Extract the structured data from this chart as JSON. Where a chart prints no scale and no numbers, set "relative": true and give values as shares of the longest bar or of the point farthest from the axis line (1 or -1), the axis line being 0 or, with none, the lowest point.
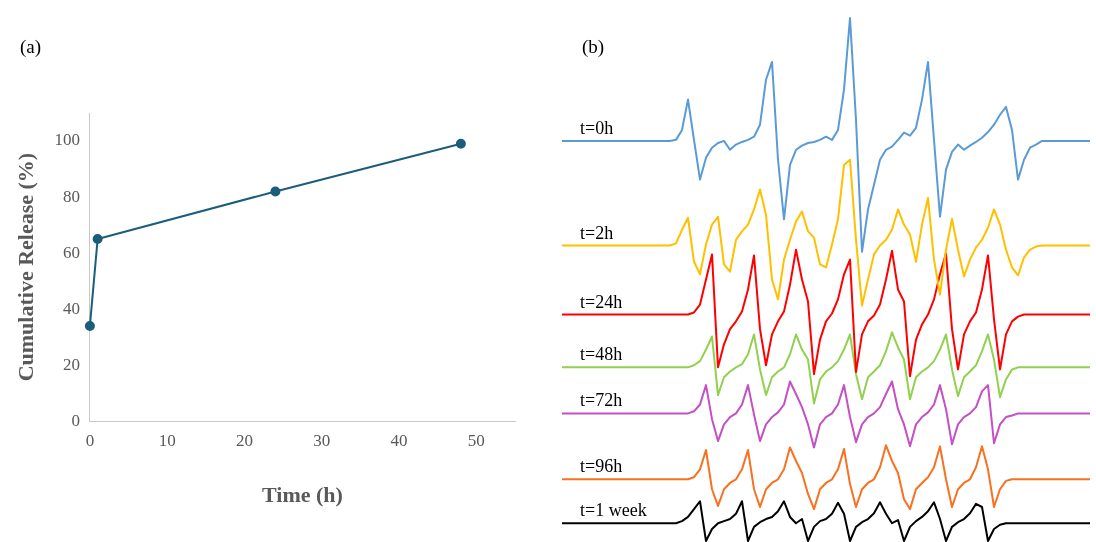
{
  "chart_data": [
    {
      "type": "line",
      "title": "(a)",
      "xlabel": "Time (h)",
      "ylabel": "Cumulative Release (%)",
      "x": [
        0,
        1,
        24,
        48
      ],
      "values": [
        34,
        65,
        82,
        99
      ],
      "color": "#1b5e7b",
      "xlim": [
        0,
        55
      ],
      "xticks": [
        0,
        10,
        20,
        30,
        40,
        50
      ],
      "ylim": [
        0,
        110
      ],
      "yticks": [
        0,
        20,
        40,
        60,
        80,
        100
      ],
      "marker": "circle",
      "grid": false
    },
    {
      "type": "line",
      "title": "(b)",
      "relative": true,
      "categories": [
        null,
        null,
        null,
        null,
        null,
        null,
        null,
        null,
        null,
        null,
        null,
        null,
        null,
        null,
        null,
        null,
        null,
        null,
        null,
        null,
        null,
        null,
        null,
        null,
        null,
        null,
        null,
        null,
        null,
        null,
        null,
        null,
        null,
        null,
        null,
        null,
        null,
        null,
        null,
        null,
        null,
        null,
        null,
        null,
        null,
        null,
        null,
        null,
        null,
        null,
        null,
        null,
        null,
        null,
        null,
        null,
        null,
        null,
        null,
        null,
        null,
        null,
        null,
        null,
        null,
        null,
        null,
        null,
        null,
        null,
        null,
        null,
        null,
        null,
        null,
        null,
        null,
        null,
        null,
        null,
        null,
        null,
        null,
        null,
        null,
        null,
        null,
        null,
        null
      ],
      "series": [
        {
          "name": "t=0h",
          "color": "#5b9bd5",
          "values": [
            0.765,
            0.765,
            0.765,
            0.765,
            0.765,
            0.765,
            0.765,
            0.765,
            0.765,
            0.765,
            0.765,
            0.765,
            0.765,
            0.765,
            0.765,
            0.765,
            0.765,
            0.765,
            0.765,
            0.767,
            0.786,
            0.844,
            0.767,
            0.691,
            0.733,
            0.752,
            0.761,
            0.765,
            0.748,
            0.758,
            0.763,
            0.767,
            0.773,
            0.796,
            0.882,
            0.916,
            0.729,
            0.615,
            0.719,
            0.748,
            0.756,
            0.761,
            0.763,
            0.767,
            0.773,
            0.767,
            0.786,
            0.863,
            1,
            0.805,
            0.553,
            0.634,
            0.681,
            0.729,
            0.748,
            0.754,
            0.767,
            0.781,
            0.775,
            0.79,
            0.844,
            0.916,
            0.767,
            0.62,
            0.71,
            0.744,
            0.758,
            0.748,
            0.756,
            0.763,
            0.771,
            0.782,
            0.796,
            0.815,
            0.83,
            0.786,
            0.691,
            0.729,
            0.752,
            0.758,
            0.765,
            0.765,
            0.765,
            0.765,
            0.765,
            0.765,
            0.765,
            0.765,
            0.765
          ]
        },
        {
          "name": "t=2h",
          "color": "#ffc000",
          "values": [
            0.565,
            0.565,
            0.565,
            0.565,
            0.565,
            0.565,
            0.565,
            0.565,
            0.565,
            0.565,
            0.565,
            0.565,
            0.565,
            0.565,
            0.565,
            0.565,
            0.565,
            0.565,
            0.565,
            0.569,
            0.595,
            0.618,
            0.534,
            0.51,
            0.567,
            0.605,
            0.62,
            0.529,
            0.515,
            0.576,
            0.592,
            0.605,
            0.634,
            0.672,
            0.624,
            0.5,
            0.462,
            0.538,
            0.576,
            0.611,
            0.63,
            0.592,
            0.58,
            0.529,
            0.523,
            0.567,
            0.615,
            0.719,
            0.729,
            0.576,
            0.45,
            0.5,
            0.548,
            0.565,
            0.576,
            0.595,
            0.634,
            0.605,
            0.586,
            0.534,
            0.605,
            0.656,
            0.538,
            0.471,
            0.557,
            0.616,
            0.557,
            0.506,
            0.538,
            0.561,
            0.576,
            0.599,
            0.634,
            0.605,
            0.557,
            0.523,
            0.508,
            0.542,
            0.557,
            0.563,
            0.565,
            0.565,
            0.565,
            0.565,
            0.565,
            0.565,
            0.565,
            0.565,
            0.565
          ]
        },
        {
          "name": "t=24h",
          "color": "#ff0000",
          "values": [
            0.433,
            0.433,
            0.433,
            0.433,
            0.433,
            0.433,
            0.433,
            0.433,
            0.433,
            0.433,
            0.433,
            0.433,
            0.433,
            0.433,
            0.433,
            0.433,
            0.433,
            0.433,
            0.433,
            0.433,
            0.433,
            0.433,
            0.437,
            0.452,
            0.5,
            0.548,
            0.332,
            0.376,
            0.405,
            0.42,
            0.439,
            0.481,
            0.546,
            0.405,
            0.336,
            0.395,
            0.42,
            0.439,
            0.49,
            0.557,
            0.5,
            0.458,
            0.319,
            0.385,
            0.42,
            0.435,
            0.462,
            0.51,
            0.538,
            0.323,
            0.395,
            0.42,
            0.431,
            0.452,
            0.5,
            0.555,
            0.481,
            0.458,
            0.315,
            0.385,
            0.414,
            0.433,
            0.462,
            0.51,
            0.55,
            0.405,
            0.328,
            0.395,
            0.42,
            0.437,
            0.481,
            0.546,
            0.424,
            0.328,
            0.395,
            0.42,
            0.429,
            0.433,
            0.433,
            0.433,
            0.433,
            0.433,
            0.433,
            0.433,
            0.433,
            0.433,
            0.433,
            0.433,
            0.433
          ]
        },
        {
          "name": "t=48h",
          "color": "#92d050",
          "values": [
            0.332,
            0.332,
            0.332,
            0.332,
            0.332,
            0.332,
            0.332,
            0.332,
            0.332,
            0.332,
            0.332,
            0.332,
            0.332,
            0.332,
            0.332,
            0.332,
            0.332,
            0.332,
            0.332,
            0.332,
            0.332,
            0.332,
            0.336,
            0.344,
            0.366,
            0.391,
            0.279,
            0.313,
            0.324,
            0.332,
            0.338,
            0.357,
            0.395,
            0.328,
            0.279,
            0.313,
            0.324,
            0.332,
            0.357,
            0.395,
            0.366,
            0.347,
            0.263,
            0.309,
            0.324,
            0.332,
            0.344,
            0.366,
            0.395,
            0.319,
            0.271,
            0.313,
            0.324,
            0.336,
            0.363,
            0.399,
            0.37,
            0.347,
            0.271,
            0.313,
            0.324,
            0.332,
            0.344,
            0.366,
            0.395,
            0.328,
            0.277,
            0.313,
            0.324,
            0.336,
            0.363,
            0.395,
            0.347,
            0.275,
            0.309,
            0.328,
            0.332,
            0.332,
            0.332,
            0.332,
            0.332,
            0.332,
            0.332,
            0.332,
            0.332,
            0.332,
            0.332,
            0.332,
            0.332
          ]
        },
        {
          "name": "t=72h",
          "color": "#c54fc5",
          "values": [
            0.244,
            0.244,
            0.244,
            0.244,
            0.244,
            0.244,
            0.244,
            0.244,
            0.244,
            0.244,
            0.244,
            0.244,
            0.244,
            0.244,
            0.244,
            0.244,
            0.244,
            0.244,
            0.244,
            0.244,
            0.244,
            0.244,
            0.248,
            0.261,
            0.298,
            0.233,
            0.191,
            0.223,
            0.237,
            0.244,
            0.261,
            0.298,
            0.242,
            0.191,
            0.223,
            0.237,
            0.246,
            0.261,
            0.305,
            0.281,
            0.256,
            0.223,
            0.179,
            0.223,
            0.237,
            0.244,
            0.261,
            0.298,
            0.237,
            0.189,
            0.223,
            0.237,
            0.244,
            0.256,
            0.281,
            0.305,
            0.252,
            0.223,
            0.181,
            0.223,
            0.237,
            0.246,
            0.261,
            0.298,
            0.252,
            0.185,
            0.223,
            0.237,
            0.244,
            0.256,
            0.286,
            0.298,
            0.187,
            0.223,
            0.237,
            0.24,
            0.244,
            0.244,
            0.244,
            0.244,
            0.244,
            0.244,
            0.244,
            0.244,
            0.244,
            0.244,
            0.244,
            0.244,
            0.244
          ]
        },
        {
          "name": "t=96h",
          "color": "#f97120",
          "values": [
            0.118,
            0.118,
            0.118,
            0.118,
            0.118,
            0.118,
            0.118,
            0.118,
            0.118,
            0.118,
            0.118,
            0.118,
            0.118,
            0.118,
            0.118,
            0.118,
            0.118,
            0.118,
            0.118,
            0.118,
            0.118,
            0.118,
            0.122,
            0.137,
            0.174,
            0.099,
            0.067,
            0.099,
            0.111,
            0.118,
            0.137,
            0.174,
            0.099,
            0.065,
            0.099,
            0.111,
            0.118,
            0.137,
            0.179,
            0.153,
            0.13,
            0.09,
            0.061,
            0.099,
            0.111,
            0.118,
            0.137,
            0.176,
            0.109,
            0.065,
            0.099,
            0.111,
            0.118,
            0.141,
            0.183,
            0.153,
            0.13,
            0.08,
            0.061,
            0.099,
            0.111,
            0.122,
            0.141,
            0.181,
            0.118,
            0.065,
            0.099,
            0.111,
            0.118,
            0.141,
            0.181,
            0.137,
            0.065,
            0.099,
            0.115,
            0.118,
            0.118,
            0.118,
            0.118,
            0.118,
            0.118,
            0.118,
            0.118,
            0.118,
            0.118,
            0.118,
            0.118,
            0.118,
            0.118
          ]
        },
        {
          "name": "t=1 week",
          "color": "#000000",
          "values": [
            0.034,
            0.034,
            0.034,
            0.034,
            0.034,
            0.034,
            0.034,
            0.034,
            0.034,
            0.034,
            0.034,
            0.034,
            0.034,
            0.034,
            0.034,
            0.034,
            0.034,
            0.034,
            0.034,
            0.034,
            0.038,
            0.046,
            0.061,
            0.076,
            0,
            0.023,
            0.034,
            0.038,
            0.042,
            0.052,
            0.076,
            0,
            0.027,
            0.036,
            0.042,
            0.046,
            0.057,
            0.076,
            0.046,
            0.034,
            0.042,
            0,
            0.027,
            0.038,
            0.042,
            0.052,
            0.073,
            0.052,
            0,
            0.027,
            0.036,
            0.042,
            0.053,
            0.074,
            0.052,
            0.034,
            0.04,
            0,
            0.027,
            0.038,
            0.046,
            0.057,
            0.074,
            0.042,
            0,
            0.027,
            0.036,
            0.042,
            0.053,
            0.071,
            0.065,
            0,
            0.023,
            0.031,
            0.034,
            0.034,
            0.034,
            0.034,
            0.034,
            0.034,
            0.034,
            0.034,
            0.034,
            0.034,
            0.034,
            0.034,
            0.034,
            0.034,
            0.034
          ]
        }
      ]
    }
  ]
}
